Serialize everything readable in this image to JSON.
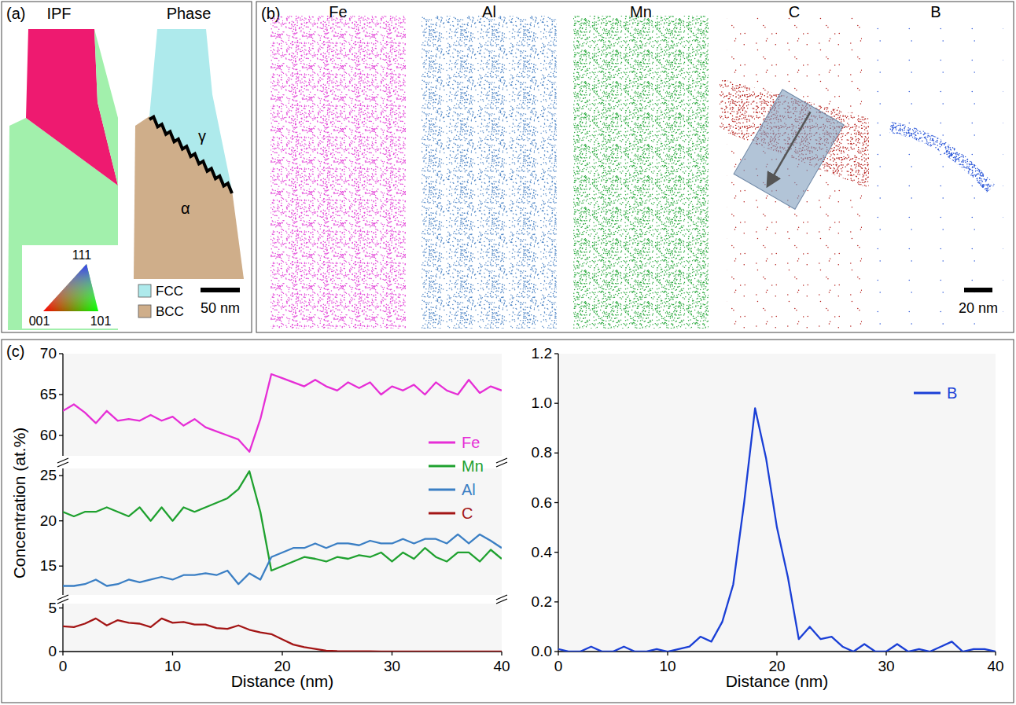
{
  "panel_a": {
    "letter": "(a)",
    "maps": [
      {
        "title": "IPF"
      },
      {
        "title": "Phase"
      }
    ],
    "phase_labels": [
      "γ",
      "α"
    ],
    "ipf_key": [
      "111",
      "001",
      "101"
    ],
    "phase_legend": [
      {
        "name": "FCC",
        "color": "#aeeaec"
      },
      {
        "name": "BCC",
        "color": "#cfae8a"
      }
    ],
    "scale_bar": "50 nm"
  },
  "panel_b": {
    "letter": "(b)",
    "maps": [
      {
        "element": "Fe",
        "color": "#e23fd6"
      },
      {
        "element": "Al",
        "color": "#4f86c6"
      },
      {
        "element": "Mn",
        "color": "#26a83a"
      },
      {
        "element": "C",
        "color": "#b41c18"
      },
      {
        "element": "B",
        "color": "#2a56d8"
      }
    ],
    "scale_bar": "20 nm"
  },
  "panel_c": {
    "letter": "(c)"
  },
  "chart_data": [
    {
      "type": "line",
      "tick_labels": "y",
      "legend": "right",
      "xlim": [
        0,
        40
      ],
      "ylim": [
        57.5,
        70
      ],
      "yticks": [
        60,
        65,
        70
      ],
      "x": [
        0,
        1,
        2,
        3,
        4,
        5,
        6,
        7,
        8,
        9,
        10,
        11,
        12,
        13,
        14,
        15,
        16,
        17,
        18,
        19,
        20,
        21,
        22,
        23,
        24,
        25,
        26,
        27,
        28,
        29,
        30,
        31,
        32,
        33,
        34,
        35,
        36,
        37,
        38,
        39,
        40
      ],
      "series": [
        {
          "name": "Fe",
          "color": "#e62ed6",
          "values": [
            63,
            63.8,
            62.8,
            61.5,
            63,
            61.8,
            62,
            61.8,
            62.5,
            61.8,
            62.3,
            61.2,
            62,
            61,
            60.5,
            60,
            59.5,
            58,
            62,
            67.5,
            67,
            66.5,
            66,
            66.8,
            66,
            65.5,
            66.5,
            65.8,
            66.5,
            65,
            66,
            65.5,
            66.2,
            65,
            66.5,
            65.5,
            65,
            66.8,
            65.2,
            66,
            65.5
          ]
        }
      ]
    },
    {
      "type": "line",
      "tick_labels": "y",
      "legend": "right",
      "y_label": "Concentration (at.%)",
      "xlim": [
        0,
        40
      ],
      "ylim": [
        11.8,
        25.8
      ],
      "yticks": [
        15,
        20,
        25
      ],
      "x": [
        0,
        1,
        2,
        3,
        4,
        5,
        6,
        7,
        8,
        9,
        10,
        11,
        12,
        13,
        14,
        15,
        16,
        17,
        18,
        19,
        20,
        21,
        22,
        23,
        24,
        25,
        26,
        27,
        28,
        29,
        30,
        31,
        32,
        33,
        34,
        35,
        36,
        37,
        38,
        39,
        40
      ],
      "series": [
        {
          "name": "Mn",
          "color": "#1fa12f",
          "values": [
            21,
            20.5,
            21,
            21,
            21.5,
            21,
            20.5,
            21.5,
            20,
            21.5,
            20,
            21.5,
            21,
            21.5,
            22,
            22.5,
            23.5,
            25.5,
            21,
            14.5,
            15,
            15.5,
            16,
            15.8,
            15.5,
            16,
            15.8,
            16.2,
            16,
            16.5,
            15.5,
            16.5,
            15.8,
            17,
            16,
            15.5,
            16.5,
            16.5,
            15.5,
            16.8,
            15.8
          ]
        },
        {
          "name": "Al",
          "color": "#3b7fc4",
          "values": [
            12.8,
            12.8,
            13,
            13.5,
            12.8,
            13,
            13.5,
            13.2,
            13.5,
            13.8,
            13.5,
            14,
            14,
            14.2,
            14,
            14.5,
            13,
            14.2,
            13.5,
            16,
            16.5,
            17,
            17,
            17.5,
            17,
            17.5,
            17.5,
            17.3,
            17.8,
            17.5,
            17.5,
            18,
            17.5,
            18,
            18,
            17.5,
            18.5,
            17.5,
            18.5,
            17.8,
            17
          ]
        }
      ]
    },
    {
      "type": "line",
      "legend": "right",
      "x_label": "Distance (nm)",
      "xlim": [
        0,
        40
      ],
      "xticks": [
        0,
        10,
        20,
        30,
        40
      ],
      "ylim": [
        0,
        5.5
      ],
      "yticks": [
        0,
        5
      ],
      "x": [
        0,
        1,
        2,
        3,
        4,
        5,
        6,
        7,
        8,
        9,
        10,
        11,
        12,
        13,
        14,
        15,
        16,
        17,
        18,
        19,
        20,
        21,
        22,
        23,
        24,
        25,
        26,
        27,
        28,
        29,
        30,
        31,
        32,
        33,
        34,
        35,
        36,
        37,
        38,
        39,
        40
      ],
      "series": [
        {
          "name": "C",
          "color": "#a31515",
          "values": [
            2.9,
            2.8,
            3.2,
            3.8,
            3,
            3.6,
            3.3,
            3.2,
            2.8,
            3.8,
            3.3,
            3.4,
            3.1,
            3.1,
            2.7,
            2.6,
            3,
            2.5,
            2.2,
            2,
            1.4,
            0.8,
            0.5,
            0.3,
            0.1,
            0.05,
            0.04,
            0.03,
            0.03,
            0.02,
            0.02,
            0.02,
            0.02,
            0.02,
            0.02,
            0.02,
            0.02,
            0.02,
            0.02,
            0.02,
            0.02
          ]
        }
      ]
    },
    {
      "type": "line",
      "legend": "top-right",
      "x_label": "Distance (nm)",
      "xlim": [
        0,
        40
      ],
      "xticks": [
        0,
        10,
        20,
        30,
        40
      ],
      "ylim": [
        0,
        1.2
      ],
      "yticks": [
        {
          "value": 0,
          "label": "0.0"
        },
        {
          "value": 0.2,
          "label": "0.2"
        },
        {
          "value": 0.4,
          "label": "0.4"
        },
        {
          "value": 0.6,
          "label": "0.6"
        },
        {
          "value": 0.8,
          "label": "0.8"
        },
        {
          "value": 1,
          "label": "1.0"
        },
        {
          "value": 1.2,
          "label": "1.2"
        }
      ],
      "x": [
        0,
        1,
        2,
        3,
        4,
        5,
        6,
        7,
        8,
        9,
        10,
        11,
        12,
        13,
        14,
        15,
        16,
        17,
        18,
        19,
        20,
        21,
        22,
        23,
        24,
        25,
        26,
        27,
        28,
        29,
        30,
        31,
        32,
        33,
        34,
        35,
        36,
        37,
        38,
        39,
        40
      ],
      "series": [
        {
          "name": "B",
          "color": "#1a3fd6",
          "values": [
            0.01,
            0,
            0,
            0.02,
            0,
            0,
            0.02,
            0,
            0,
            0.01,
            0,
            0.01,
            0.02,
            0.06,
            0.04,
            0.12,
            0.27,
            0.6,
            0.98,
            0.78,
            0.5,
            0.3,
            0.05,
            0.1,
            0.05,
            0.06,
            0.02,
            0,
            0.03,
            0,
            0,
            0.03,
            0,
            0.01,
            0,
            0.02,
            0.04,
            0,
            0.01,
            0.01,
            0
          ]
        }
      ]
    }
  ]
}
